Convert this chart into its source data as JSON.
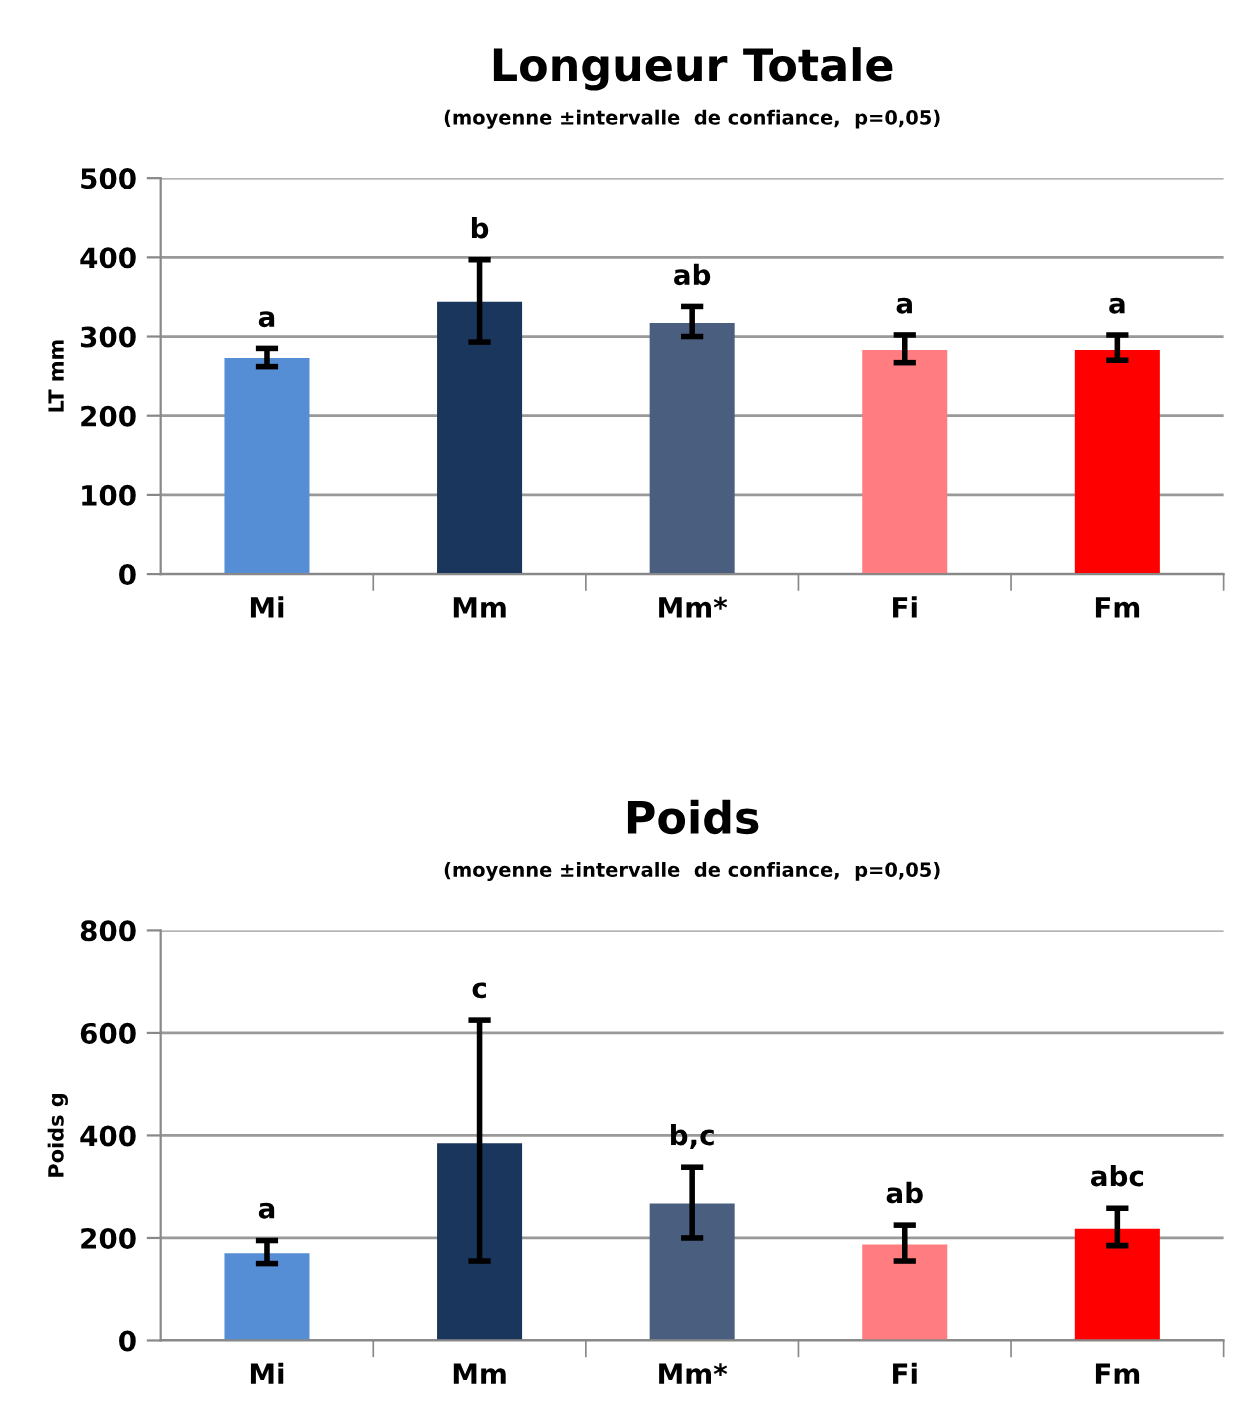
{
  "chart_data": [
    {
      "type": "bar",
      "title": "Longueur Totale",
      "subtitle": "(moyenne ±intervalle  de confiance,  p=0,05)",
      "ylabel": "LT mm",
      "categories": [
        "Mi",
        "Mm",
        "Mm*",
        "Fi",
        "Fm"
      ],
      "values": [
        273,
        344,
        317,
        283,
        283
      ],
      "colors": [
        "#558ed5",
        "#1b365d",
        "#4a5f80",
        "#ff7c80",
        "#ff0000"
      ],
      "errors": [
        [
          262,
          285
        ],
        [
          293,
          397
        ],
        [
          300,
          338
        ],
        [
          267,
          302
        ],
        [
          270,
          302
        ]
      ],
      "ylim": [
        0,
        500
      ],
      "yticks": [
        0,
        100,
        200,
        300,
        400,
        500
      ],
      "grid": "y",
      "legend": false,
      "annotations": [
        "a",
        "b",
        "ab",
        "a",
        "a"
      ]
    },
    {
      "type": "bar",
      "title": "Poids",
      "subtitle": "(moyenne ±intervalle  de confiance,  p=0,05)",
      "ylabel": "Poids g",
      "categories": [
        "Mi",
        "Mm",
        "Mm*",
        "Fi",
        "Fm"
      ],
      "values": [
        170,
        385,
        267,
        187,
        218
      ],
      "colors": [
        "#558ed5",
        "#1b365d",
        "#4a5f80",
        "#ff7c80",
        "#ff0000"
      ],
      "errors": [
        [
          150,
          195
        ],
        [
          155,
          625
        ],
        [
          200,
          338
        ],
        [
          155,
          225
        ],
        [
          185,
          258
        ]
      ],
      "ylim": [
        0,
        800
      ],
      "yticks": [
        0,
        200,
        400,
        600,
        800
      ],
      "grid": "y",
      "legend": false,
      "annotations": [
        "a",
        "c",
        "b,c",
        "ab",
        "abc"
      ]
    }
  ]
}
